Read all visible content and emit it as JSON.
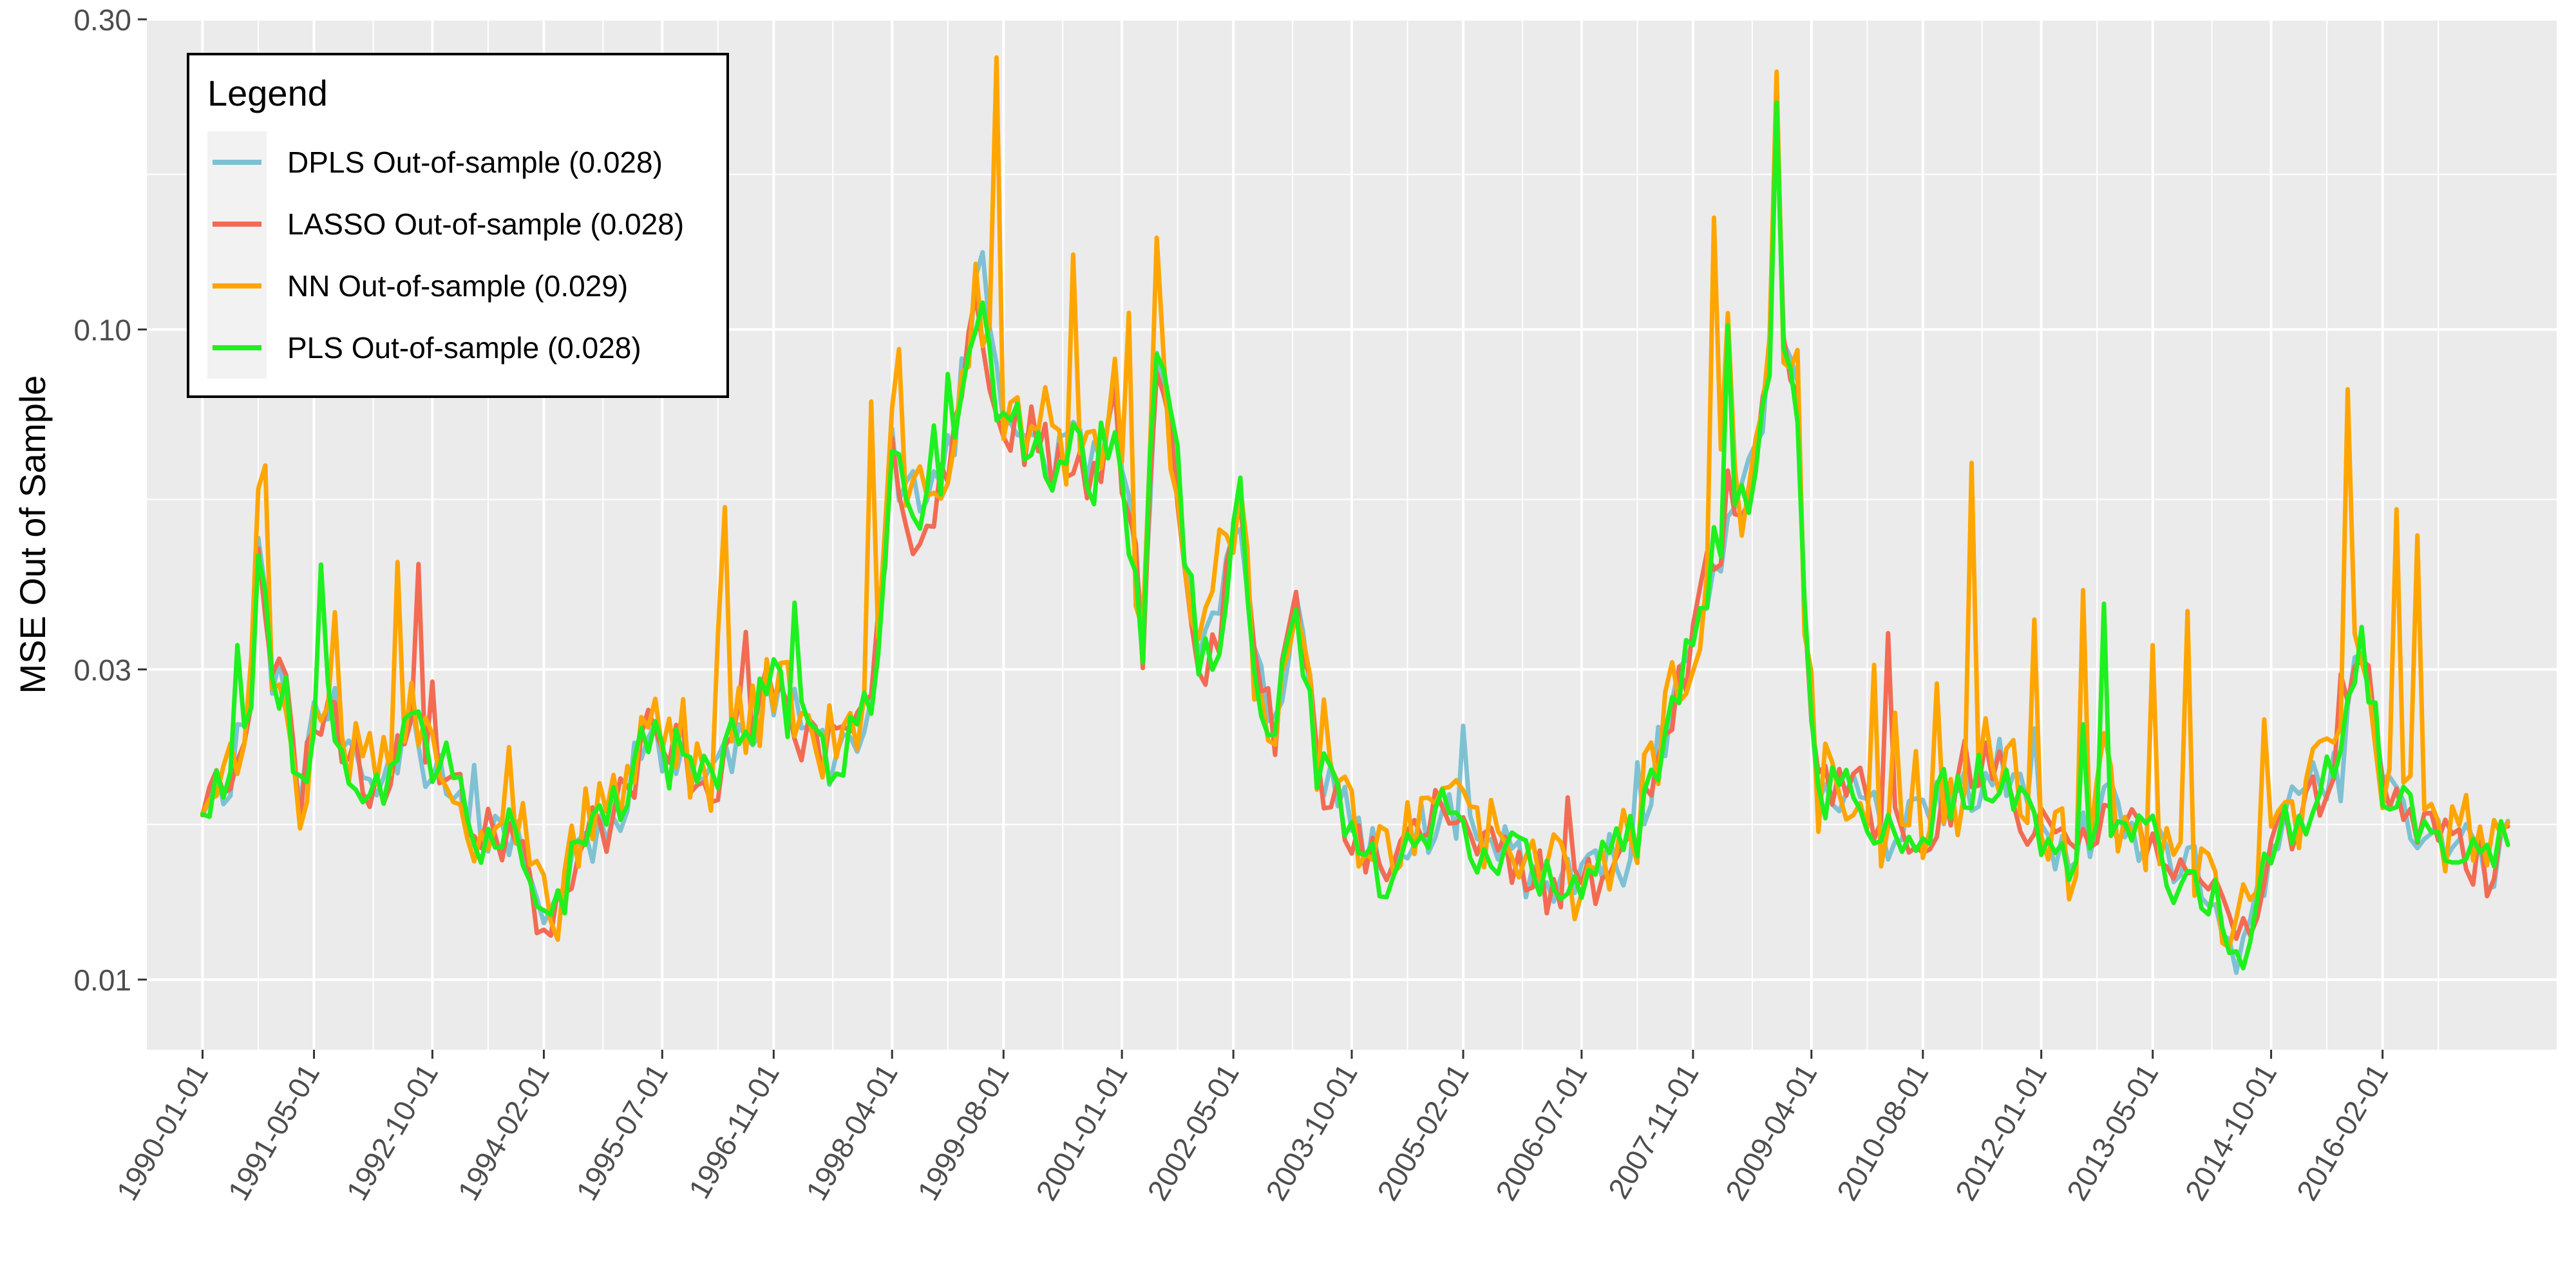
{
  "chart_data": {
    "type": "line",
    "title": "",
    "xlabel": "",
    "ylabel": "MSE Out of Sample",
    "y_scale": "log10",
    "ylim": [
      0.0078,
      0.3
    ],
    "xlim": [
      "1989-05-01",
      "2018-03-01"
    ],
    "grid": true,
    "legend_position": "top-left",
    "legend_title": "Legend",
    "x_ticks": [
      "1990-01-01",
      "1991-05-01",
      "1992-10-01",
      "1994-02-01",
      "1995-07-01",
      "1996-11-01",
      "1998-04-01",
      "1999-08-01",
      "2001-01-01",
      "2002-05-01",
      "2003-10-01",
      "2005-02-01",
      "2006-07-01",
      "2007-11-01",
      "2009-04-01",
      "2010-08-01",
      "2012-01-01",
      "2013-05-01",
      "2014-10-01",
      "2016-02-01"
    ],
    "y_ticks": [
      0.01,
      0.03,
      0.1,
      0.3
    ],
    "y_tick_labels": [
      "0.01",
      "0.03",
      "0.10",
      "0.30"
    ],
    "x_start": "1990-01",
    "x_frequency": "monthly",
    "base_curve": {
      "x": [
        "1990-01",
        "1990-05",
        "1990-08",
        "1990-09",
        "1990-11",
        "1991-01",
        "1991-02",
        "1991-03",
        "1991-05",
        "1991-07",
        "1991-10",
        "1992-01",
        "1992-04",
        "1992-07",
        "1992-09",
        "1992-11",
        "1993-02",
        "1993-04",
        "1993-07",
        "1993-10",
        "1994-01",
        "1994-04",
        "1994-07",
        "1994-10",
        "1995-01",
        "1995-03",
        "1995-05",
        "1995-08",
        "1995-10",
        "1995-12",
        "1996-03",
        "1996-06",
        "1996-09",
        "1996-11",
        "1997-02",
        "1997-05",
        "1997-08",
        "1997-11",
        "1998-01",
        "1998-04",
        "1998-07",
        "1998-10",
        "1999-01",
        "1999-04",
        "1999-06",
        "1999-07",
        "1999-09",
        "1999-12",
        "2000-03",
        "2000-06",
        "2000-09",
        "2000-12",
        "2001-02",
        "2001-04",
        "2001-06",
        "2001-09",
        "2001-12",
        "2002-03",
        "2002-06",
        "2002-08",
        "2002-11",
        "2003-02",
        "2003-05",
        "2003-08",
        "2003-11",
        "2004-02",
        "2004-05",
        "2004-08",
        "2004-11",
        "2005-02",
        "2005-05",
        "2005-08",
        "2005-11",
        "2006-02",
        "2006-05",
        "2006-08",
        "2006-11",
        "2007-02",
        "2007-05",
        "2007-08",
        "2007-11",
        "2008-02",
        "2008-05",
        "2008-08",
        "2008-10",
        "2008-11",
        "2008-12",
        "2009-02",
        "2009-03",
        "2009-05",
        "2009-08",
        "2009-11",
        "2010-02",
        "2010-05",
        "2010-08",
        "2010-11",
        "2011-02",
        "2011-05",
        "2011-08",
        "2011-11",
        "2012-02",
        "2012-05",
        "2012-08",
        "2012-11",
        "2013-02",
        "2013-05",
        "2013-08",
        "2013-11",
        "2014-02",
        "2014-05",
        "2014-08",
        "2014-11",
        "2015-02",
        "2015-05",
        "2015-08",
        "2015-11",
        "2016-02",
        "2016-05",
        "2016-08",
        "2016-11",
        "2017-02",
        "2017-05",
        "2017-08"
      ],
      "y": [
        0.019,
        0.021,
        0.028,
        0.049,
        0.03,
        0.028,
        0.022,
        0.019,
        0.024,
        0.028,
        0.022,
        0.02,
        0.021,
        0.028,
        0.022,
        0.021,
        0.02,
        0.017,
        0.016,
        0.018,
        0.013,
        0.013,
        0.016,
        0.017,
        0.019,
        0.021,
        0.024,
        0.022,
        0.023,
        0.02,
        0.021,
        0.024,
        0.026,
        0.028,
        0.025,
        0.023,
        0.022,
        0.024,
        0.026,
        0.063,
        0.05,
        0.055,
        0.07,
        0.11,
        0.09,
        0.08,
        0.072,
        0.068,
        0.063,
        0.065,
        0.06,
        0.075,
        0.05,
        0.032,
        0.09,
        0.06,
        0.03,
        0.035,
        0.055,
        0.03,
        0.024,
        0.04,
        0.022,
        0.018,
        0.017,
        0.015,
        0.015,
        0.017,
        0.018,
        0.017,
        0.016,
        0.016,
        0.015,
        0.014,
        0.014,
        0.014,
        0.015,
        0.016,
        0.02,
        0.026,
        0.033,
        0.045,
        0.052,
        0.06,
        0.09,
        0.25,
        0.09,
        0.08,
        0.035,
        0.019,
        0.019,
        0.019,
        0.017,
        0.017,
        0.017,
        0.019,
        0.019,
        0.021,
        0.021,
        0.018,
        0.016,
        0.015,
        0.017,
        0.018,
        0.017,
        0.016,
        0.014,
        0.015,
        0.013,
        0.011,
        0.013,
        0.017,
        0.018,
        0.02,
        0.021,
        0.034,
        0.02,
        0.018,
        0.017,
        0.016,
        0.016,
        0.015,
        0.016
      ]
    },
    "series": [
      {
        "name": "DPLS Out-of-sample (0.028)",
        "color": "#7EC1D3",
        "seed": 11,
        "noise": 0.05,
        "spike_chance": 0.03,
        "spike_size": 0.2,
        "bias": 0.0
      },
      {
        "name": "LASSO Out-of-sample (0.028)",
        "color": "#F26B52",
        "seed": 23,
        "noise": 0.05,
        "spike_chance": 0.04,
        "spike_size": 0.3,
        "bias": 0.0
      },
      {
        "name": "NN Out-of-sample (0.029)",
        "color": "#FFA500",
        "seed": 37,
        "noise": 0.07,
        "spike_chance": 0.12,
        "spike_size": 0.55,
        "bias": 0.012
      },
      {
        "name": "PLS Out-of-sample (0.028)",
        "color": "#1FF01F",
        "seed": 53,
        "noise": 0.05,
        "spike_chance": 0.04,
        "spike_size": 0.3,
        "bias": 0.0
      }
    ]
  }
}
